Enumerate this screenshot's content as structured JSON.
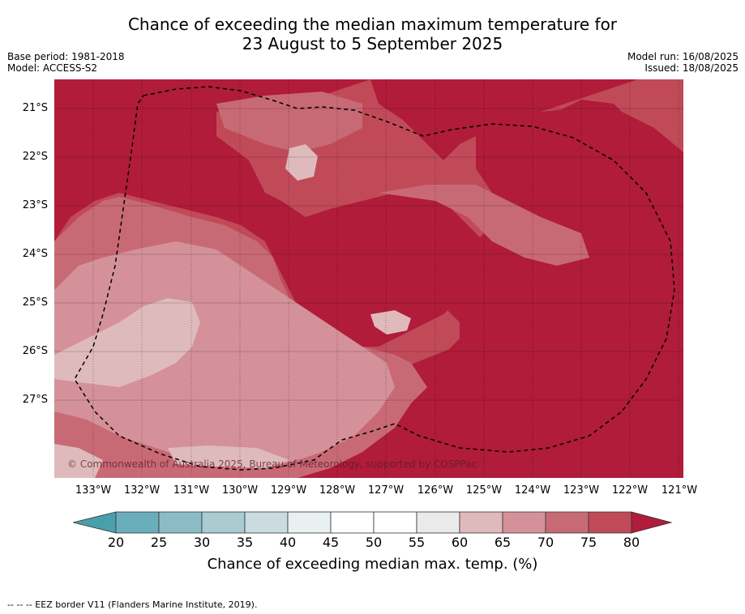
{
  "title_line1": "Chance of exceeding the median maximum temperature for",
  "title_line2": "23 August to 5 September 2025",
  "base_period": "Base period: 1981-2018",
  "model": "Model: ACCESS-S2",
  "model_run": "Model run: 16/08/2025",
  "issued": "Issued: 18/08/2025",
  "copyright": "© Commonwealth of Australia 2025, Bureau of Meteorology, supported by COSPPac",
  "lat_labels": [
    "21°S",
    "22°S",
    "23°S",
    "24°S",
    "25°S",
    "26°S",
    "27°S"
  ],
  "lon_labels": [
    "133°W",
    "132°W",
    "131°W",
    "130°W",
    "129°W",
    "128°W",
    "127°W",
    "126°W",
    "125°W",
    "124°W",
    "123°W",
    "122°W",
    "121°W"
  ],
  "colorbar": {
    "title": "Chance of exceeding median max. temp. (%)",
    "ticks": [
      "20",
      "25",
      "30",
      "35",
      "40",
      "45",
      "50",
      "55",
      "60",
      "65",
      "70",
      "75",
      "80"
    ],
    "colors": {
      "below_20": "#4a9fac",
      "20_25": "#6aaebc",
      "25_30": "#8bbcc6",
      "30_35": "#a9cbd1",
      "35_40": "#cadcdf",
      "40_45": "#e9f0f2",
      "45_50": "#ffffff",
      "50_55": "#ffffff",
      "55_60": "#eaeaea",
      "60_65": "#dfbabd",
      "65_70": "#d4919a",
      "70_75": "#c86a75",
      "75_80": "#c14a59",
      "above_80": "#b01c39"
    }
  },
  "footer": "--  --  -- EEZ border V11 (Flanders Marine Institute, 2019)."
}
